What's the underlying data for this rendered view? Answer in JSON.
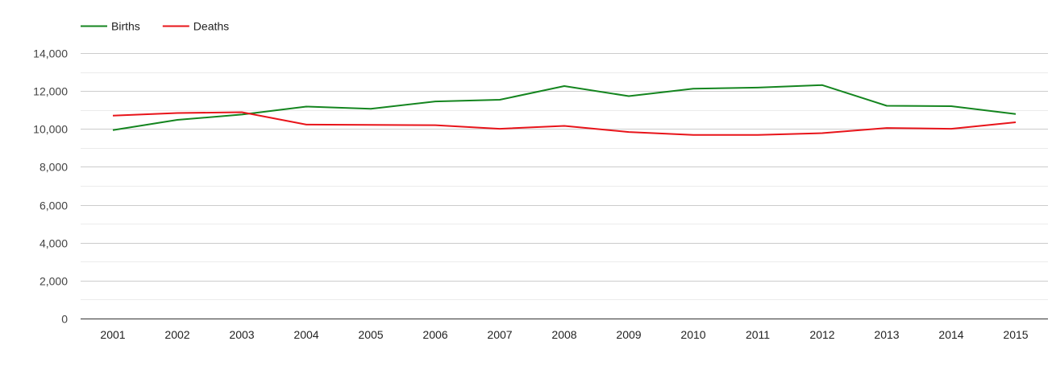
{
  "chart_data": {
    "type": "line",
    "title": "",
    "xlabel": "",
    "ylabel": "",
    "x": [
      "2001",
      "2002",
      "2003",
      "2004",
      "2005",
      "2006",
      "2007",
      "2008",
      "2009",
      "2010",
      "2011",
      "2012",
      "2013",
      "2014",
      "2015"
    ],
    "ylim": [
      0,
      14000
    ],
    "yticks": [
      0,
      2000,
      4000,
      6000,
      8000,
      10000,
      12000,
      14000
    ],
    "ytick_labels": [
      "0",
      "2,000",
      "4,000",
      "6,000",
      "8,000",
      "10,000",
      "12,000",
      "14,000"
    ],
    "grid": true,
    "minor_grid": true,
    "legend_position": "top-left",
    "series": [
      {
        "name": "Births",
        "color": "#14851f",
        "values": [
          9940,
          10480,
          10760,
          11180,
          11060,
          11450,
          11540,
          12260,
          11730,
          12120,
          12180,
          12310,
          11220,
          11200,
          10790
        ]
      },
      {
        "name": "Deaths",
        "color": "#e8141a",
        "values": [
          10700,
          10840,
          10880,
          10230,
          10210,
          10200,
          10010,
          10160,
          9840,
          9680,
          9680,
          9780,
          10050,
          10010,
          10350
        ]
      }
    ]
  }
}
